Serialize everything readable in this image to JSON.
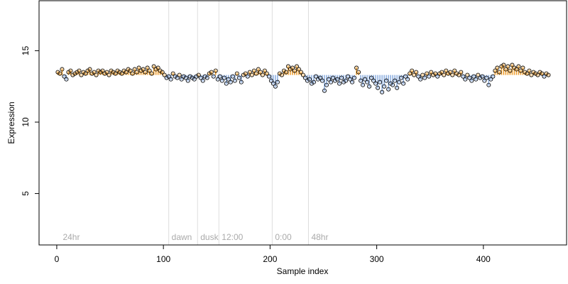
{
  "chart_data": {
    "type": "scatter",
    "xlabel": "Sample index",
    "ylabel": "Expression",
    "xlim": [
      -16.6,
      478
    ],
    "ylim": [
      1.4,
      18.5
    ],
    "xticks": [
      0,
      100,
      200,
      300,
      400
    ],
    "yticks": [
      5,
      10,
      15
    ],
    "baseline": 13.3,
    "above_color": "#f0a030",
    "below_color": "#8fb0e0",
    "vlines": [
      105,
      132,
      152,
      202,
      236
    ],
    "annotations": [
      {
        "x": 3,
        "label": "24hr"
      },
      {
        "x": 105,
        "label": "dawn"
      },
      {
        "x": 132,
        "label": "dusk"
      },
      {
        "x": 152,
        "label": "12:00"
      },
      {
        "x": 202,
        "label": "0:00"
      },
      {
        "x": 236,
        "label": "48hr"
      }
    ],
    "x": [
      1,
      3,
      5,
      7,
      9,
      11,
      13,
      15,
      17,
      19,
      21,
      23,
      25,
      27,
      29,
      31,
      33,
      35,
      37,
      39,
      41,
      43,
      45,
      47,
      49,
      51,
      53,
      55,
      57,
      59,
      61,
      63,
      65,
      67,
      69,
      71,
      73,
      75,
      77,
      79,
      81,
      83,
      85,
      87,
      89,
      91,
      93,
      95,
      97,
      99,
      101,
      103,
      105,
      107,
      109,
      111,
      113,
      115,
      117,
      119,
      121,
      123,
      125,
      127,
      129,
      131,
      133,
      135,
      137,
      139,
      141,
      143,
      145,
      147,
      149,
      151,
      153,
      155,
      157,
      159,
      161,
      163,
      165,
      167,
      169,
      171,
      173,
      175,
      177,
      179,
      181,
      183,
      185,
      187,
      189,
      191,
      193,
      195,
      197,
      199,
      201,
      203,
      205,
      207,
      209,
      211,
      213,
      215,
      217,
      219,
      221,
      223,
      225,
      227,
      229,
      231,
      233,
      235,
      237,
      239,
      241,
      243,
      245,
      247,
      249,
      251,
      253,
      255,
      257,
      259,
      261,
      263,
      265,
      267,
      269,
      271,
      273,
      275,
      277,
      279,
      281,
      283,
      285,
      287,
      289,
      291,
      293,
      295,
      297,
      299,
      301,
      303,
      305,
      307,
      309,
      311,
      313,
      315,
      317,
      319,
      321,
      323,
      325,
      327,
      329,
      331,
      333,
      335,
      337,
      339,
      341,
      343,
      345,
      347,
      349,
      351,
      353,
      355,
      357,
      359,
      361,
      363,
      365,
      367,
      369,
      371,
      373,
      375,
      377,
      379,
      381,
      383,
      385,
      387,
      389,
      391,
      393,
      395,
      397,
      399,
      401,
      403,
      405,
      407,
      409,
      411,
      413,
      415,
      417,
      419,
      421,
      423,
      425,
      427,
      429,
      431,
      433,
      435,
      437,
      439,
      441,
      443,
      445,
      447,
      449,
      451,
      453,
      455,
      457,
      459,
      461
    ],
    "values": [
      13.5,
      13.4,
      13.7,
      13.2,
      13.0,
      13.5,
      13.6,
      13.3,
      13.4,
      13.5,
      13.6,
      13.3,
      13.5,
      13.4,
      13.6,
      13.7,
      13.4,
      13.5,
      13.3,
      13.6,
      13.5,
      13.6,
      13.4,
      13.5,
      13.3,
      13.6,
      13.5,
      13.4,
      13.6,
      13.5,
      13.4,
      13.6,
      13.5,
      13.7,
      13.6,
      13.4,
      13.7,
      13.5,
      13.8,
      13.6,
      13.7,
      13.5,
      13.8,
      13.6,
      13.4,
      13.9,
      13.7,
      13.8,
      13.6,
      13.5,
      13.3,
      13.1,
      13.2,
      13.0,
      13.4,
      13.2,
      13.1,
      13.3,
      13.0,
      13.2,
      13.1,
      12.9,
      13.2,
      13.1,
      13.0,
      13.2,
      13.3,
      13.1,
      12.9,
      13.2,
      13.1,
      13.4,
      13.5,
      13.2,
      13.6,
      13.0,
      13.2,
      12.9,
      13.1,
      12.7,
      13.0,
      12.8,
      13.2,
      12.9,
      13.4,
      13.1,
      12.8,
      13.3,
      13.4,
      13.2,
      13.5,
      13.3,
      13.6,
      13.4,
      13.7,
      13.5,
      13.3,
      13.6,
      13.4,
      13.2,
      12.9,
      12.7,
      12.5,
      12.8,
      13.4,
      13.3,
      13.6,
      13.5,
      13.9,
      13.7,
      13.8,
      13.6,
      13.9,
      13.7,
      13.5,
      13.3,
      13.1,
      12.9,
      13.0,
      12.7,
      12.8,
      13.2,
      13.0,
      13.1,
      12.9,
      12.2,
      12.6,
      13.0,
      12.8,
      13.1,
      12.9,
      13.0,
      12.7,
      13.1,
      12.8,
      12.9,
      13.2,
      13.0,
      12.8,
      13.1,
      13.8,
      13.5,
      12.9,
      12.6,
      13.0,
      12.8,
      12.5,
      13.1,
      12.9,
      12.7,
      12.4,
      12.8,
      12.1,
      12.5,
      12.9,
      12.3,
      12.7,
      12.6,
      12.9,
      12.4,
      12.8,
      13.1,
      12.7,
      13.2,
      13.0,
      13.4,
      13.6,
      13.3,
      13.5,
      13.2,
      13.0,
      13.3,
      13.1,
      13.4,
      13.2,
      13.5,
      13.3,
      13.4,
      13.2,
      13.4,
      13.5,
      13.3,
      13.6,
      13.4,
      13.5,
      13.3,
      13.6,
      13.4,
      13.3,
      13.5,
      13.2,
      13.0,
      13.3,
      13.1,
      12.9,
      13.2,
      13.0,
      13.3,
      13.1,
      13.2,
      12.9,
      13.1,
      12.6,
      13.0,
      13.2,
      13.6,
      13.8,
      13.5,
      13.9,
      14.0,
      13.7,
      13.9,
      13.6,
      14.0,
      13.8,
      13.7,
      13.9,
      13.6,
      13.8,
      13.5,
      13.4,
      13.6,
      13.3,
      13.5,
      13.4,
      13.3,
      13.5,
      13.4,
      13.2,
      13.4,
      13.3
    ]
  }
}
